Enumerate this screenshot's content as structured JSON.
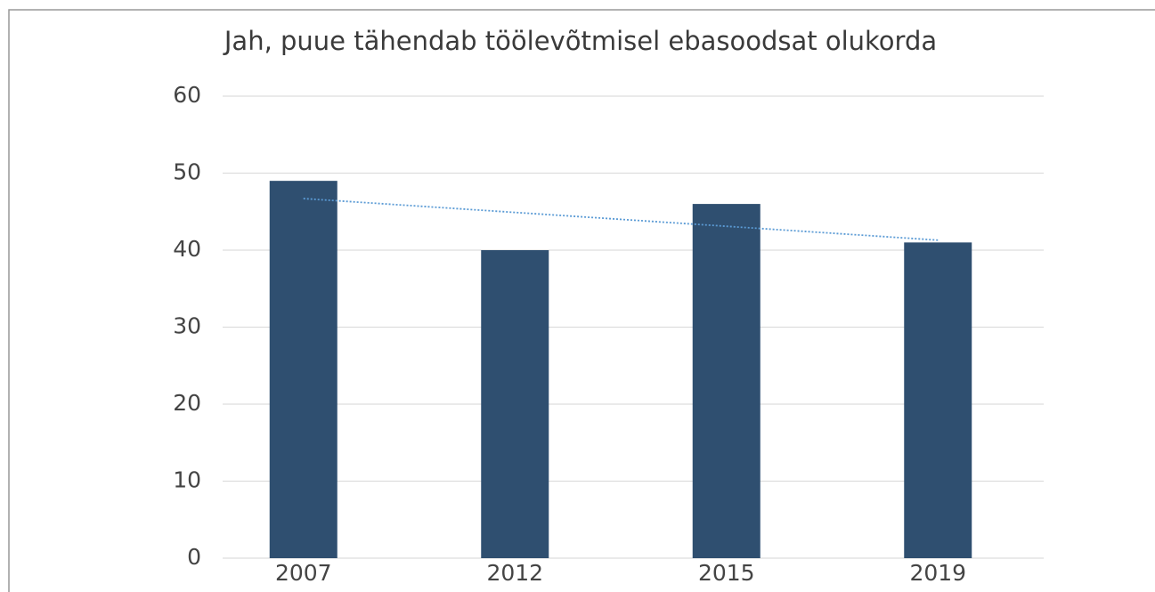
{
  "chart_data": {
    "type": "bar",
    "title": "Jah, puue tähendab töölevõtmisel ebasoodsat olukorda",
    "categories": [
      "2007",
      "2012",
      "2015",
      "2019"
    ],
    "values": [
      49,
      40,
      46,
      41
    ],
    "color": "#2f4f70",
    "ylim": [
      0,
      60
    ],
    "yticks": [
      0,
      10,
      20,
      30,
      40,
      50,
      60
    ],
    "grid": true,
    "trendline": true,
    "trendline_color": "#5b9bd5"
  }
}
